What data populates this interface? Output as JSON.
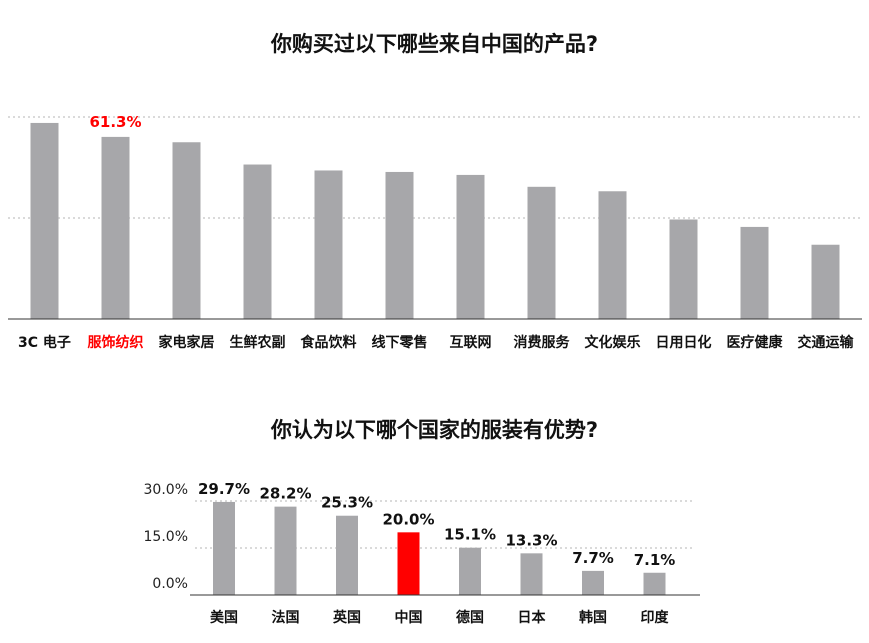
{
  "colors": {
    "bar": "#a7a7aa",
    "highlight": "#ff0000",
    "text": "#111111",
    "axis": "#333333"
  },
  "chart_data": [
    {
      "type": "bar",
      "title": "你购买过以下哪些来自中国的产品?",
      "categories": [
        "3C 电子",
        "服饰纺织",
        "家电家居",
        "生鲜农副",
        "食品饮料",
        "线下零售",
        "互联网",
        "消费服务",
        "文化娱乐",
        "日用日化",
        "医疗健康",
        "交通运输"
      ],
      "values": [
        66.0,
        61.3,
        59.5,
        52.0,
        50.0,
        49.5,
        48.5,
        44.5,
        43.0,
        33.5,
        31.0,
        25.0
      ],
      "data_labels": [
        "",
        "61.3%",
        "",
        "",
        "",
        "",
        "",
        "",
        "",
        "",
        "",
        ""
      ],
      "highlight_index": 1,
      "ylim": [
        0,
        68
      ],
      "gridlines": [
        34,
        68
      ],
      "grid": true,
      "ylabel": "",
      "xlabel": ""
    },
    {
      "type": "bar",
      "title": "你认为以下哪个国家的服装有优势?",
      "categories": [
        "美国",
        "法国",
        "英国",
        "中国",
        "德国",
        "日本",
        "韩国",
        "印度"
      ],
      "values": [
        29.7,
        28.2,
        25.3,
        20.0,
        15.1,
        13.3,
        7.7,
        7.1
      ],
      "data_labels": [
        "29.7%",
        "28.2%",
        "25.3%",
        "20.0%",
        "15.1%",
        "13.3%",
        "7.7%",
        "7.1%"
      ],
      "highlight_index": 3,
      "ylim": [
        0,
        30
      ],
      "yticks": [
        "30.0%",
        "15.0%",
        "0.0%"
      ],
      "ytick_values": [
        30,
        15,
        0
      ],
      "grid": true,
      "ylabel": "",
      "xlabel": ""
    }
  ]
}
